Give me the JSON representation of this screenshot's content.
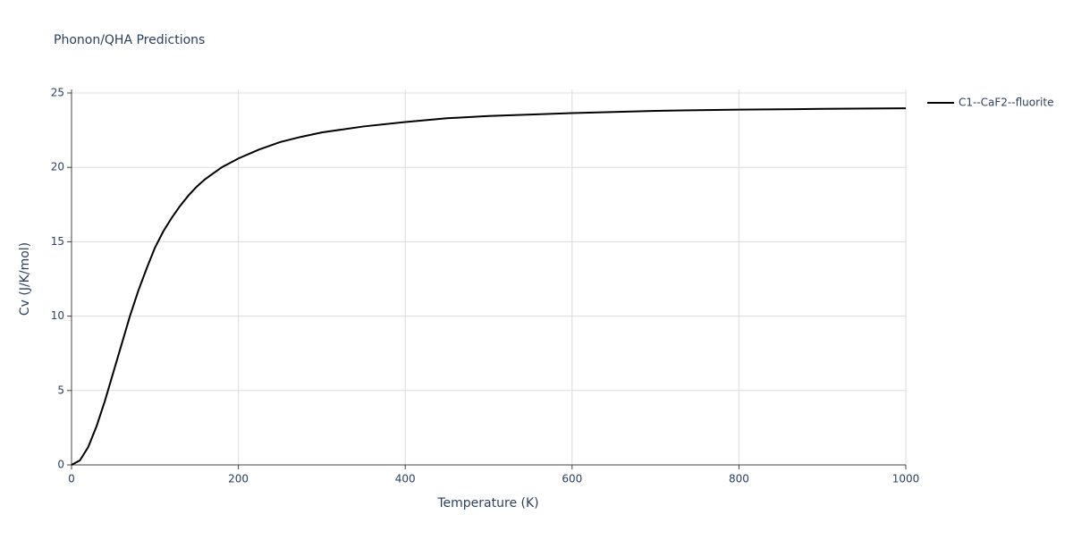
{
  "chart_data": {
    "type": "line",
    "title": "Phonon/QHA Predictions",
    "x_label": "Temperature (K)",
    "y_label": "Cv (J/K/mol)",
    "x": [
      0,
      10,
      20,
      30,
      40,
      50,
      60,
      70,
      80,
      90,
      100,
      110,
      120,
      130,
      140,
      150,
      160,
      170,
      180,
      190,
      200,
      225,
      250,
      275,
      300,
      350,
      400,
      450,
      500,
      600,
      700,
      800,
      900,
      1000
    ],
    "series": [
      {
        "name": "C1--CaF2--fluorite",
        "color": "#000000",
        "values": [
          0,
          0.3,
          1.2,
          2.6,
          4.3,
          6.2,
          8.1,
          10.0,
          11.7,
          13.2,
          14.6,
          15.7,
          16.6,
          17.4,
          18.1,
          18.7,
          19.2,
          19.6,
          20.0,
          20.3,
          20.6,
          21.2,
          21.7,
          22.05,
          22.35,
          22.75,
          23.05,
          23.3,
          23.45,
          23.65,
          23.8,
          23.88,
          23.93,
          23.97
        ]
      }
    ],
    "xlim": [
      0,
      1000
    ],
    "xticks": [
      0,
      200,
      400,
      600,
      800,
      1000
    ],
    "ylim": [
      0,
      25
    ],
    "yticks": [
      0,
      5,
      10,
      15,
      20,
      25
    ],
    "grid": true,
    "legend": "right"
  }
}
